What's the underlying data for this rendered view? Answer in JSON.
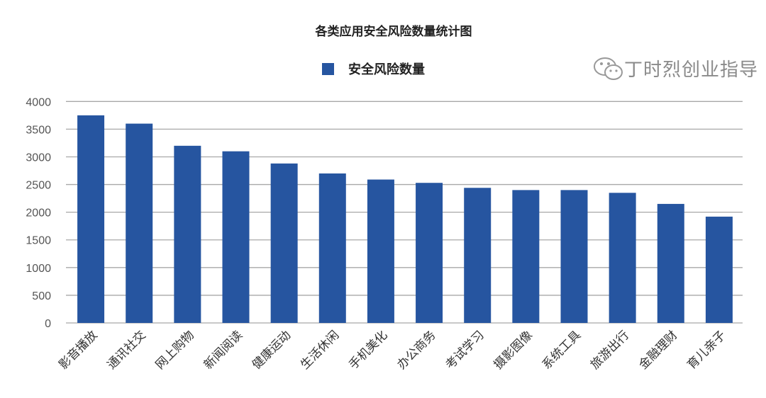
{
  "chart_data": {
    "type": "bar",
    "title": "各类应用安全风险数量统计图",
    "legend": [
      "安全风险数量"
    ],
    "legend_position": "top-center",
    "xlabel": "",
    "ylabel": "",
    "ylim": [
      0,
      4000
    ],
    "yticks": [
      0,
      500,
      1000,
      1500,
      2000,
      2500,
      3000,
      3500,
      4000
    ],
    "grid": true,
    "categories": [
      "影音播放",
      "通讯社交",
      "网上购物",
      "新闻阅读",
      "健康运动",
      "生活休闲",
      "手机美化",
      "办公商务",
      "考试学习",
      "摄影图像",
      "系统工具",
      "旅游出行",
      "金融理财",
      "育儿亲子"
    ],
    "series": [
      {
        "name": "安全风险数量",
        "color": "#2655a0",
        "values": [
          3750,
          3600,
          3200,
          3100,
          2880,
          2700,
          2590,
          2530,
          2440,
          2400,
          2400,
          2350,
          2150,
          1920
        ]
      }
    ]
  },
  "watermark": {
    "text": "丁时烈创业指导",
    "icon": "wechat-icon"
  }
}
